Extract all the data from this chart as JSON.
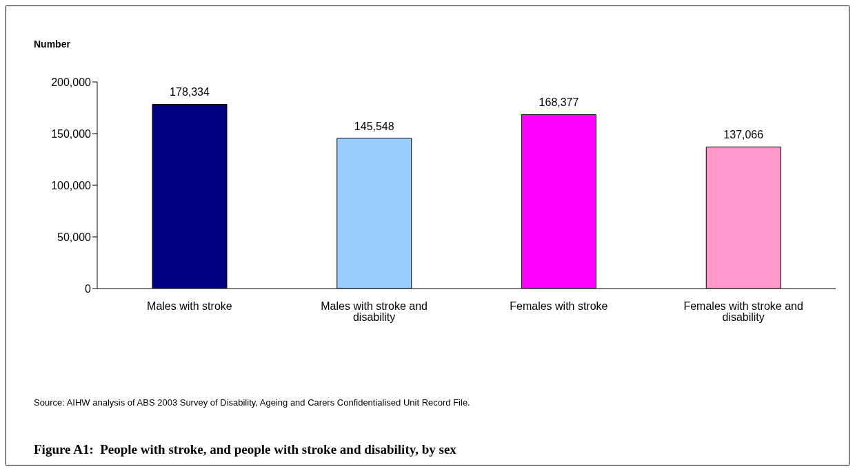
{
  "chart_data": {
    "type": "bar",
    "title": "Figure A1:  People with stroke, and people with stroke and disability, by sex",
    "ylabel": "Number",
    "categories": [
      "Males with stroke",
      "Males with stroke and disability",
      "Females with stroke",
      "Females with stroke and disability"
    ],
    "values": [
      178334,
      145548,
      168377,
      137066
    ],
    "value_labels": [
      "178,334",
      "145,548",
      "168,377",
      "137,066"
    ],
    "colors": [
      "#000080",
      "#99ccff",
      "#ff00ff",
      "#ff99cc"
    ],
    "ylim": [
      0,
      200000
    ],
    "yticks": [
      0,
      {
        "value": 50000,
        "label": "50,000"
      },
      {
        "value": 100000,
        "label": "100,000"
      },
      {
        "value": 150000,
        "label": "150,000"
      },
      {
        "value": 200000,
        "label": "200,000"
      }
    ],
    "grid": false,
    "legend": false,
    "annotations": [
      "Source: AIHW analysis of ABS 2003 Survey of Disability, Ageing and Carers Confidentialised Unit Record File."
    ]
  }
}
